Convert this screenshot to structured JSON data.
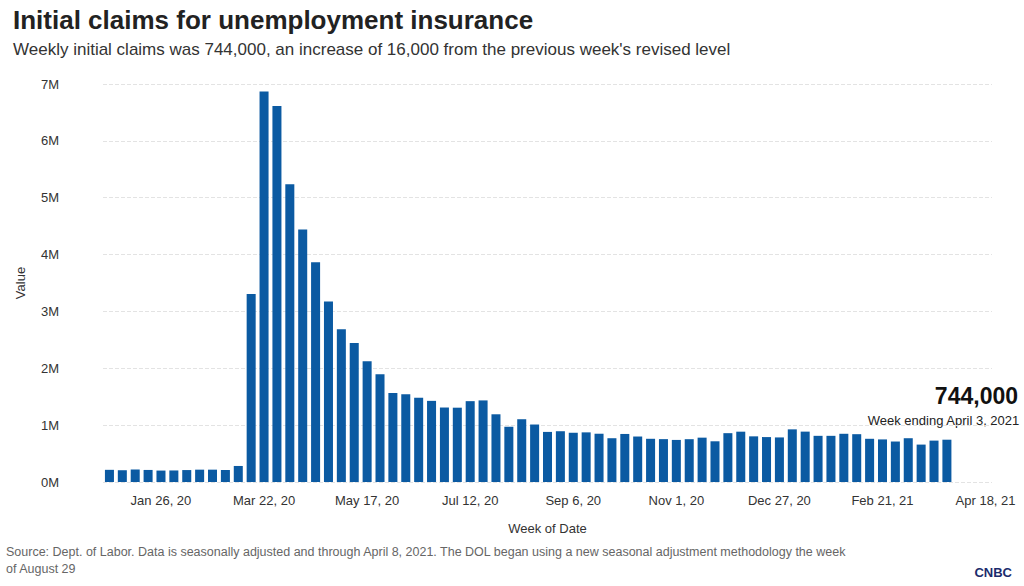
{
  "chart_data": {
    "type": "bar",
    "title": "Initial claims for unemployment insurance",
    "subtitle": "Weekly initial claims was 744,000, an increase of 16,000 from the previous week's revised level",
    "x_label": "Week of Date",
    "y_label": "Value",
    "annotation": {
      "headline": "744,000",
      "note": "Week ending April 3, 2021"
    },
    "source": "Source: Dept. of Labor. Data is seasonally adjusted and through April 8, 2021. The DOL began using a new seasonal adjustment methodology the week of August 29",
    "logo": "CNBC",
    "color": "#0b5aa2",
    "grid": true,
    "categories": [
      null,
      null,
      null,
      null,
      "Jan 26, 20",
      null,
      null,
      null,
      null,
      null,
      null,
      null,
      "Mar 22, 20",
      null,
      null,
      null,
      null,
      null,
      null,
      null,
      "May 17, 20",
      null,
      null,
      null,
      null,
      null,
      null,
      null,
      "Jul 12, 20",
      null,
      null,
      null,
      null,
      null,
      null,
      null,
      "Sep 6, 20",
      null,
      null,
      null,
      null,
      null,
      null,
      null,
      "Nov 1, 20",
      null,
      null,
      null,
      null,
      null,
      null,
      null,
      "Dec 27, 20",
      null,
      null,
      null,
      null,
      null,
      null,
      null,
      "Feb 21, 21",
      null,
      null,
      null,
      null,
      null,
      null,
      null,
      "Apr 18, 21"
    ],
    "values": [
      214000,
      207000,
      220000,
      212000,
      201000,
      203000,
      210000,
      217000,
      217000,
      211000,
      282000,
      3307000,
      6867000,
      6615000,
      5237000,
      4442000,
      3867000,
      3176000,
      2687000,
      2446000,
      2123000,
      1897000,
      1566000,
      1544000,
      1482000,
      1427000,
      1310000,
      1307000,
      1422000,
      1435000,
      1191000,
      971000,
      1104000,
      1011000,
      881000,
      893000,
      866000,
      873000,
      849000,
      770000,
      845000,
      800000,
      760000,
      754000,
      740000,
      753000,
      780000,
      716000,
      859000,
      885000,
      803000,
      790000,
      784000,
      926000,
      886000,
      812000,
      812000,
      848000,
      841000,
      760000,
      749000,
      712000,
      770000,
      658000,
      728000,
      744000,
      null,
      null,
      null
    ],
    "ylim": [
      0,
      7000000
    ],
    "yticks": [
      {
        "value": 0,
        "label": "0M"
      },
      {
        "value": 1000000,
        "label": "1M"
      },
      {
        "value": 2000000,
        "label": "2M"
      },
      {
        "value": 3000000,
        "label": "3M"
      },
      {
        "value": 4000000,
        "label": "4M"
      },
      {
        "value": 5000000,
        "label": "5M"
      },
      {
        "value": 6000000,
        "label": "6M"
      },
      {
        "value": 7000000,
        "label": "7M"
      }
    ]
  }
}
